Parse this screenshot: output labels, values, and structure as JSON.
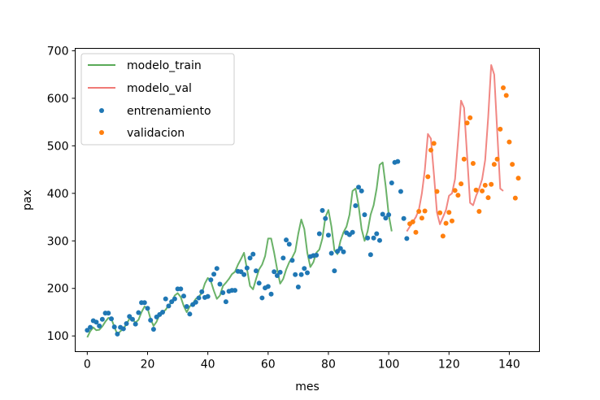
{
  "chart_data": {
    "type": "line",
    "xlabel": "mes",
    "ylabel": "pax",
    "xlim": [
      -4,
      150
    ],
    "ylim": [
      67,
      705
    ],
    "xticks": [
      0,
      20,
      40,
      60,
      80,
      100,
      120,
      140
    ],
    "yticks": [
      100,
      200,
      300,
      400,
      500,
      600,
      700
    ],
    "grid": false,
    "legend_position": "top-left",
    "series": [
      {
        "name": "modelo_train",
        "kind": "line",
        "color": "#5aaa58",
        "x_start": 0,
        "values": [
          97,
          110,
          118,
          112,
          113,
          120,
          130,
          138,
          136,
          119,
          103,
          110,
          115,
          125,
          136,
          135,
          128,
          134,
          150,
          162,
          158,
          136,
          121,
          130,
          145,
          150,
          155,
          165,
          170,
          185,
          190,
          182,
          163,
          150,
          162,
          168,
          178,
          183,
          190,
          210,
          222,
          215,
          195,
          178,
          185,
          205,
          212,
          220,
          230,
          235,
          250,
          262,
          275,
          240,
          205,
          198,
          220,
          240,
          250,
          268,
          305,
          305,
          275,
          240,
          210,
          220,
          240,
          255,
          265,
          278,
          315,
          345,
          325,
          275,
          245,
          255,
          275,
          282,
          305,
          350,
          365,
          330,
          280,
          272,
          300,
          318,
          330,
          355,
          405,
          410,
          375,
          325,
          300,
          320,
          355,
          375,
          410,
          460,
          465,
          415,
          355,
          320
        ]
      },
      {
        "name": "modelo_val",
        "kind": "line",
        "color": "#f07a76",
        "x_start": 106,
        "values": [
          320,
          330,
          340,
          350,
          365,
          400,
          450,
          525,
          515,
          440,
          360,
          335,
          350,
          365,
          395,
          400,
          430,
          510,
          595,
          580,
          480,
          380,
          375,
          395,
          410,
          430,
          470,
          560,
          670,
          650,
          530,
          410,
          405
        ]
      },
      {
        "name": "entrenamiento",
        "kind": "scatter",
        "color": "#1f77b4",
        "x_start": 0,
        "values": [
          112,
          118,
          132,
          129,
          121,
          135,
          148,
          148,
          136,
          119,
          104,
          118,
          115,
          126,
          141,
          135,
          125,
          149,
          170,
          170,
          158,
          133,
          114,
          140,
          145,
          150,
          178,
          163,
          172,
          178,
          199,
          199,
          184,
          162,
          146,
          166,
          171,
          180,
          193,
          181,
          183,
          218,
          230,
          242,
          209,
          191,
          172,
          194,
          196,
          196,
          236,
          235,
          229,
          243,
          264,
          272,
          237,
          211,
          180,
          201,
          204,
          188,
          235,
          227,
          234,
          264,
          302,
          293,
          259,
          229,
          203,
          229,
          242,
          233,
          267,
          269,
          270,
          315,
          364,
          347,
          312,
          274,
          237,
          278,
          284,
          277,
          317,
          313,
          318,
          374,
          413,
          405,
          355,
          306,
          271,
          306,
          315,
          301,
          356,
          348,
          355,
          422,
          465,
          467,
          404,
          347,
          305
        ]
      },
      {
        "name": "validacion",
        "kind": "scatter",
        "color": "#ff7f0e",
        "x_start": 107,
        "values": [
          336,
          340,
          318,
          362,
          348,
          363,
          435,
          491,
          505,
          404,
          359,
          310,
          337,
          360,
          342,
          406,
          396,
          420,
          472,
          548,
          559,
          463,
          407,
          362,
          405,
          417,
          391,
          419,
          461,
          472,
          535,
          622,
          606,
          508,
          461,
          390,
          432
        ]
      }
    ]
  }
}
